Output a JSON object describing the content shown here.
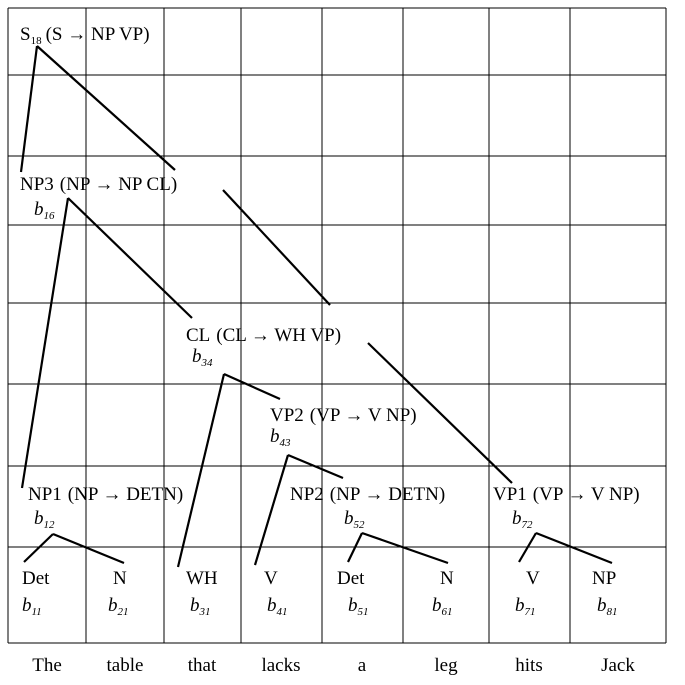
{
  "nodes": [
    {
      "id": "s",
      "label": "S",
      "label_sub": "18",
      "rule": "(S → NP VP)",
      "b": "",
      "b_sub": ""
    },
    {
      "id": "np3",
      "label": "NP3",
      "label_sub": "",
      "rule": "(NP → NP CL)",
      "b": "b",
      "b_sub": "16"
    },
    {
      "id": "cl",
      "label": "CL",
      "label_sub": "",
      "rule": "(CL → WH VP)",
      "b": "b",
      "b_sub": "34"
    },
    {
      "id": "vp2",
      "label": "VP2",
      "label_sub": "",
      "rule": "(VP → V NP)",
      "b": "b",
      "b_sub": "43"
    },
    {
      "id": "np1",
      "label": "NP1",
      "label_sub": "",
      "rule": "(NP → DETN)",
      "b": "b",
      "b_sub": "12"
    },
    {
      "id": "np2",
      "label": "NP2",
      "label_sub": "",
      "rule": "(NP → DETN)",
      "b": "b",
      "b_sub": "52"
    },
    {
      "id": "vp1",
      "label": "VP1",
      "label_sub": "",
      "rule": "(VP → V NP)",
      "b": "b",
      "b_sub": "72"
    }
  ],
  "leaves": [
    {
      "label": "Det",
      "b": "b",
      "b_sub": "11"
    },
    {
      "label": "N",
      "b": "b",
      "b_sub": "21"
    },
    {
      "label": "WH",
      "b": "b",
      "b_sub": "31"
    },
    {
      "label": "V",
      "b": "b",
      "b_sub": "41"
    },
    {
      "label": "Det",
      "b": "b",
      "b_sub": "51"
    },
    {
      "label": "N",
      "b": "b",
      "b_sub": "61"
    },
    {
      "label": "V",
      "b": "b",
      "b_sub": "71"
    },
    {
      "label": "NP",
      "b": "b",
      "b_sub": "81"
    }
  ],
  "words": [
    "The",
    "table",
    "that",
    "lacks",
    "a",
    "leg",
    "hits",
    "Jack"
  ]
}
